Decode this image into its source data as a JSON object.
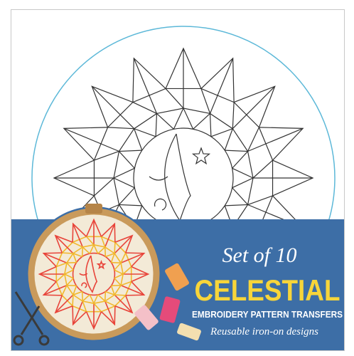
{
  "cover": {
    "kicker": "Set of 10",
    "title": "CELESTIAL",
    "subtitle": "EMBROIDERY PATTERN TRANSFERS",
    "tagline": "Reusable iron-on designs"
  }
}
